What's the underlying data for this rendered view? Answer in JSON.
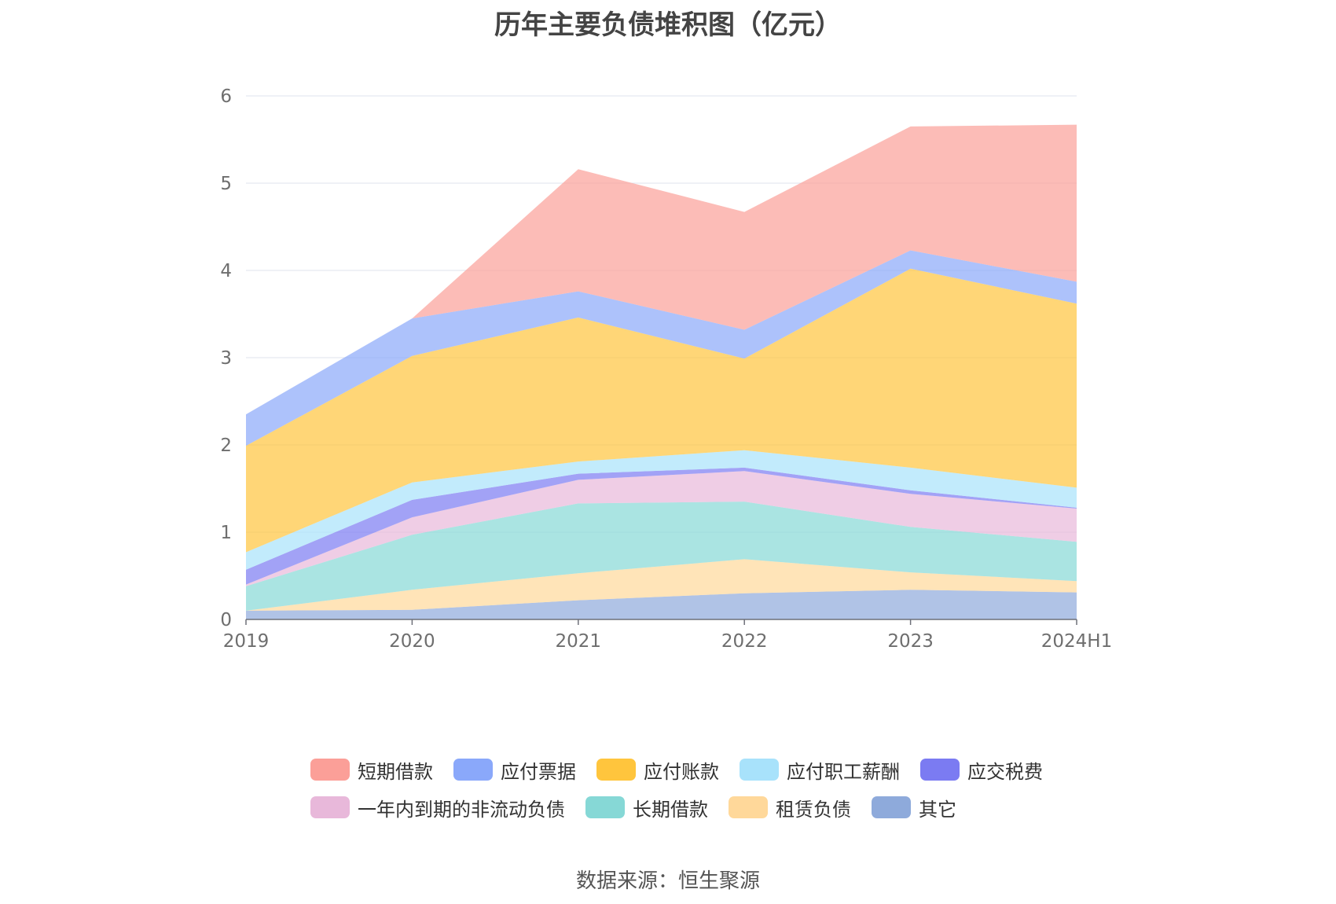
{
  "chart_data": {
    "type": "area",
    "stacked": true,
    "title": "历年主要负债堆积图（亿元）",
    "source": "数据来源：恒生聚源",
    "categories": [
      "2019",
      "2020",
      "2021",
      "2022",
      "2023",
      "2024H1"
    ],
    "ylim": [
      0,
      6
    ],
    "yticks": [
      "0",
      "1",
      "2",
      "3",
      "4",
      "5",
      "6"
    ],
    "grid": true,
    "legend_position": "bottom",
    "series": [
      {
        "name": "其它",
        "color": "#8eaadb",
        "values": [
          0.1,
          0.11,
          0.22,
          0.3,
          0.34,
          0.31
        ]
      },
      {
        "name": "租赁负债",
        "color": "#ffd89a",
        "values": [
          0.0,
          0.23,
          0.31,
          0.39,
          0.2,
          0.13
        ]
      },
      {
        "name": "长期借款",
        "color": "#86d8d6",
        "values": [
          0.28,
          0.63,
          0.8,
          0.66,
          0.52,
          0.45
        ]
      },
      {
        "name": "一年内到期的非流动负债",
        "color": "#e8b8da",
        "values": [
          0.02,
          0.2,
          0.27,
          0.35,
          0.38,
          0.38
        ]
      },
      {
        "name": "应交税费",
        "color": "#7b7bf2",
        "values": [
          0.17,
          0.2,
          0.07,
          0.04,
          0.04,
          0.01
        ]
      },
      {
        "name": "应付职工薪酬",
        "color": "#a8e2fb",
        "values": [
          0.2,
          0.2,
          0.14,
          0.2,
          0.26,
          0.23
        ]
      },
      {
        "name": "应付账款",
        "color": "#ffc53d",
        "values": [
          1.22,
          1.45,
          1.65,
          1.05,
          2.28,
          2.11
        ]
      },
      {
        "name": "应付票据",
        "color": "#8aa8fa",
        "values": [
          0.36,
          0.43,
          0.3,
          0.33,
          0.21,
          0.25
        ]
      },
      {
        "name": "短期借款",
        "color": "#fb9f98",
        "values": [
          0.0,
          0.0,
          1.4,
          1.35,
          1.42,
          1.8
        ]
      }
    ]
  },
  "legend": {
    "rows": [
      [
        {
          "name": "短期借款",
          "color": "#fb9f98"
        },
        {
          "name": "应付票据",
          "color": "#8aa8fa"
        },
        {
          "name": "应付账款",
          "color": "#ffc53d"
        },
        {
          "name": "应付职工薪酬",
          "color": "#a8e2fb"
        },
        {
          "name": "应交税费",
          "color": "#7b7bf2"
        }
      ],
      [
        {
          "name": "一年内到期的非流动负债",
          "color": "#e8b8da"
        },
        {
          "name": "长期借款",
          "color": "#86d8d6"
        },
        {
          "name": "租赁负债",
          "color": "#ffd89a"
        },
        {
          "name": "其它",
          "color": "#8eaadb"
        }
      ]
    ]
  }
}
